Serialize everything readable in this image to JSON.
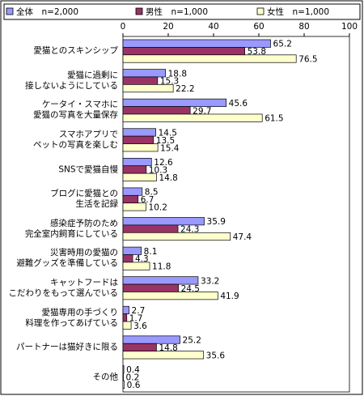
{
  "chart_data": {
    "type": "bar",
    "orientation": "horizontal",
    "categories": [
      "愛猫とのスキンシップ",
      "愛猫に過剰に\n接しないようにしている",
      "ケータイ・スマホに\n愛猫の写真を大量保存",
      "スマホアプリで\nペットの写真を楽しむ",
      "SNSで愛猫自慢",
      "ブログに愛猫との\n生活を記録",
      "感染症予防のため\n完全室内飼育にしている",
      "災害時用の愛猫の\n避難グッズを準備している",
      "キャットフードは\nこだわりをもって選んでいる",
      "愛猫専用の手づくり\n料理を作ってあげている",
      "パートナーは猫好きに限る",
      "その他"
    ],
    "series": [
      {
        "name": "全体　n=2,000",
        "color": "#9999ff",
        "values": [
          65.2,
          18.8,
          45.6,
          14.5,
          12.6,
          8.5,
          35.9,
          8.1,
          33.2,
          2.7,
          25.2,
          0.4
        ]
      },
      {
        "name": "男性　n=1,000",
        "color": "#993366",
        "values": [
          53.8,
          15.3,
          29.7,
          13.5,
          10.3,
          6.7,
          24.3,
          4.3,
          24.5,
          1.7,
          14.8,
          0.2
        ]
      },
      {
        "name": "女性　n=1,000",
        "color": "#ffffcc",
        "values": [
          76.5,
          22.2,
          61.5,
          15.4,
          14.8,
          10.2,
          47.4,
          11.8,
          41.9,
          3.6,
          35.6,
          0.6
        ]
      }
    ],
    "xlim": [
      0,
      100
    ],
    "xticks": [
      0,
      20,
      40,
      60,
      80,
      100
    ]
  }
}
